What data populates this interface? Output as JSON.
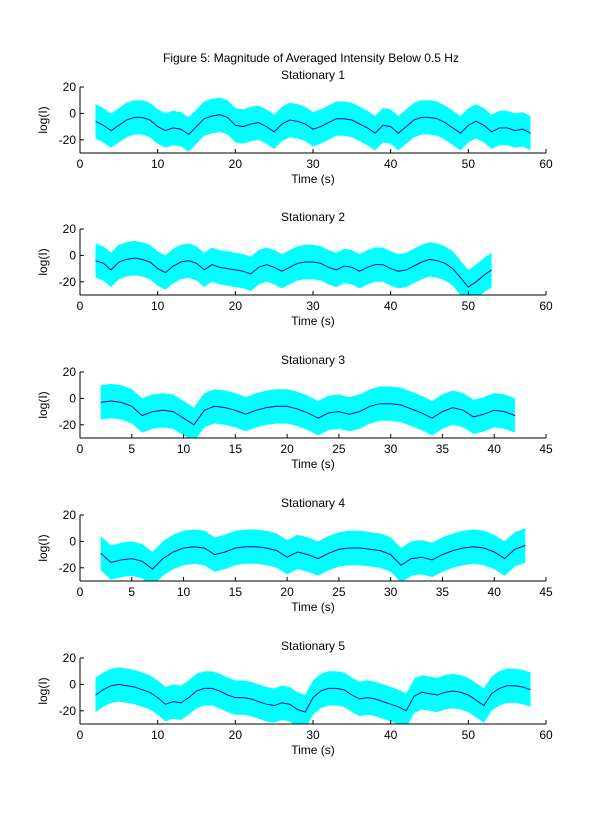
{
  "figure": {
    "title": "Figure 5: Magnitude of Averaged Intensity Below 0.5 Hz",
    "colors": {
      "band": "#00ffff",
      "line": "#0000cc",
      "axis": "#000000"
    }
  },
  "chart_data": [
    {
      "type": "area",
      "title": "Stationary 1",
      "xlabel": "Time (s)",
      "ylabel": "log(I)",
      "xlim": [
        0,
        60
      ],
      "ylim": [
        -30,
        20
      ],
      "xticks": [
        0,
        10,
        20,
        30,
        40,
        50,
        60
      ],
      "yticks": [
        -20,
        0,
        20
      ],
      "band_halfwidth": 13,
      "series": [
        {
          "x": [
            2,
            3,
            4,
            5,
            6,
            7,
            8,
            9,
            10,
            11,
            12,
            13,
            14,
            15,
            16,
            17,
            18,
            19,
            20,
            21,
            22,
            23,
            24,
            25,
            26,
            27,
            28,
            29,
            30,
            31,
            32,
            33,
            34,
            35,
            36,
            37,
            38,
            39,
            40,
            41,
            42,
            43,
            44,
            45,
            46,
            47,
            48,
            49,
            50,
            51,
            52,
            53,
            54,
            55,
            56,
            57,
            58
          ],
          "y": [
            -6,
            -9,
            -13,
            -9,
            -5,
            -3,
            -3,
            -5,
            -10,
            -13,
            -11,
            -12,
            -16,
            -10,
            -4,
            -2,
            -1,
            -3,
            -9,
            -10,
            -8,
            -7,
            -10,
            -14,
            -8,
            -5,
            -6,
            -8,
            -12,
            -10,
            -7,
            -4,
            -4,
            -5,
            -8,
            -11,
            -15,
            -9,
            -10,
            -15,
            -10,
            -5,
            -3,
            -3,
            -4,
            -7,
            -11,
            -15,
            -9,
            -6,
            -9,
            -14,
            -11,
            -11,
            -13,
            -12,
            -15
          ]
        }
      ]
    },
    {
      "type": "area",
      "title": "Stationary 2",
      "xlabel": "Time (s)",
      "ylabel": "log(I)",
      "xlim": [
        0,
        60
      ],
      "ylim": [
        -30,
        20
      ],
      "xticks": [
        0,
        10,
        20,
        30,
        40,
        50,
        60
      ],
      "yticks": [
        -20,
        0,
        20
      ],
      "band_halfwidth": 13,
      "series": [
        {
          "x": [
            2,
            3,
            4,
            5,
            6,
            7,
            8,
            9,
            10,
            11,
            12,
            13,
            14,
            15,
            16,
            17,
            18,
            19,
            20,
            21,
            22,
            23,
            24,
            25,
            26,
            27,
            28,
            29,
            30,
            31,
            32,
            33,
            34,
            35,
            36,
            37,
            38,
            39,
            40,
            41,
            42,
            43,
            44,
            45,
            46,
            47,
            48,
            49,
            50,
            51,
            52,
            53
          ],
          "y": [
            -4,
            -6,
            -11,
            -5,
            -3,
            -2,
            -3,
            -5,
            -10,
            -13,
            -8,
            -5,
            -4,
            -6,
            -11,
            -7,
            -9,
            -10,
            -11,
            -12,
            -14,
            -9,
            -7,
            -9,
            -12,
            -9,
            -6,
            -5,
            -5,
            -6,
            -9,
            -11,
            -8,
            -9,
            -12,
            -9,
            -7,
            -7,
            -10,
            -12,
            -11,
            -8,
            -5,
            -3,
            -4,
            -6,
            -10,
            -17,
            -24,
            -20,
            -15,
            -11
          ]
        }
      ]
    },
    {
      "type": "area",
      "title": "Stationary 3",
      "xlabel": "Time (s)",
      "ylabel": "log(I)",
      "xlim": [
        0,
        45
      ],
      "ylim": [
        -30,
        20
      ],
      "xticks": [
        0,
        5,
        10,
        15,
        20,
        25,
        30,
        35,
        40,
        45
      ],
      "yticks": [
        -20,
        0,
        20
      ],
      "band_halfwidth": 13,
      "series": [
        {
          "x": [
            2,
            3,
            4,
            5,
            6,
            7,
            8,
            9,
            10,
            11,
            12,
            13,
            14,
            15,
            16,
            17,
            18,
            19,
            20,
            21,
            22,
            23,
            24,
            25,
            26,
            27,
            28,
            29,
            30,
            31,
            32,
            33,
            34,
            35,
            36,
            37,
            38,
            39,
            40,
            41,
            42
          ],
          "y": [
            -3,
            -2,
            -3,
            -6,
            -13,
            -10,
            -9,
            -10,
            -15,
            -20,
            -9,
            -6,
            -7,
            -9,
            -12,
            -9,
            -7,
            -6,
            -6,
            -8,
            -11,
            -15,
            -11,
            -10,
            -12,
            -10,
            -6,
            -4,
            -4,
            -5,
            -8,
            -11,
            -15,
            -10,
            -7,
            -9,
            -14,
            -12,
            -9,
            -10,
            -13
          ]
        }
      ]
    },
    {
      "type": "area",
      "title": "Stationary 4",
      "xlabel": "Time (s)",
      "ylabel": "log(I)",
      "xlim": [
        0,
        45
      ],
      "ylim": [
        -30,
        20
      ],
      "xticks": [
        0,
        5,
        10,
        15,
        20,
        25,
        30,
        35,
        40,
        45
      ],
      "yticks": [
        -20,
        0,
        20
      ],
      "band_halfwidth": 13,
      "series": [
        {
          "x": [
            2,
            3,
            4,
            5,
            6,
            7,
            8,
            9,
            10,
            11,
            12,
            13,
            14,
            15,
            16,
            17,
            18,
            19,
            20,
            21,
            22,
            23,
            24,
            25,
            26,
            27,
            28,
            29,
            30,
            31,
            32,
            33,
            34,
            35,
            36,
            37,
            38,
            39,
            40,
            41,
            42,
            43
          ],
          "y": [
            -9,
            -16,
            -14,
            -13,
            -15,
            -21,
            -13,
            -8,
            -5,
            -4,
            -5,
            -10,
            -8,
            -5,
            -4,
            -4,
            -5,
            -7,
            -12,
            -8,
            -10,
            -13,
            -9,
            -6,
            -5,
            -5,
            -6,
            -7,
            -10,
            -18,
            -13,
            -12,
            -14,
            -10,
            -7,
            -5,
            -4,
            -5,
            -8,
            -13,
            -6,
            -3
          ]
        }
      ]
    },
    {
      "type": "area",
      "title": "Stationary 5",
      "xlabel": "Time (s)",
      "ylabel": "log(I)",
      "xlim": [
        0,
        60
      ],
      "ylim": [
        -30,
        20
      ],
      "xticks": [
        0,
        10,
        20,
        30,
        40,
        50,
        60
      ],
      "yticks": [
        -20,
        0,
        20
      ],
      "band_halfwidth": 13,
      "series": [
        {
          "x": [
            2,
            3,
            4,
            5,
            6,
            7,
            8,
            9,
            10,
            11,
            12,
            13,
            14,
            15,
            16,
            17,
            18,
            19,
            20,
            21,
            22,
            23,
            24,
            25,
            26,
            27,
            28,
            29,
            30,
            31,
            32,
            33,
            34,
            35,
            36,
            37,
            38,
            39,
            40,
            41,
            42,
            43,
            44,
            45,
            46,
            47,
            48,
            49,
            50,
            51,
            52,
            53,
            54,
            55,
            56,
            57,
            58
          ],
          "y": [
            -8,
            -4,
            -1,
            0,
            -1,
            -2,
            -4,
            -6,
            -10,
            -15,
            -13,
            -14,
            -10,
            -5,
            -3,
            -3,
            -5,
            -8,
            -10,
            -10,
            -11,
            -13,
            -15,
            -16,
            -14,
            -15,
            -19,
            -21,
            -10,
            -5,
            -3,
            -3,
            -4,
            -8,
            -11,
            -10,
            -11,
            -13,
            -15,
            -17,
            -20,
            -9,
            -6,
            -7,
            -8,
            -6,
            -5,
            -6,
            -8,
            -12,
            -16,
            -7,
            -3,
            -1,
            -1,
            -2,
            -4
          ]
        }
      ]
    }
  ]
}
